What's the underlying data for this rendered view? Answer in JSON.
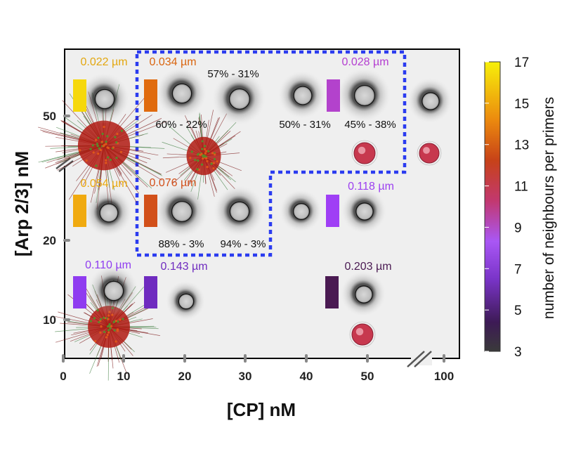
{
  "chart_data": {
    "type": "scatter",
    "xlabel": "[CP] nM",
    "ylabel": "[Arp 2/3] nM",
    "x_ticks": [
      "0",
      "10",
      "20",
      "30",
      "40",
      "50",
      "100"
    ],
    "y_ticks": [
      "50",
      "20",
      "10"
    ],
    "colorbar": {
      "label": "number of neighbours per primers",
      "ticks": [
        "17",
        "15",
        "13",
        "11",
        "9",
        "7",
        "5",
        "3"
      ],
      "range": [
        3,
        17
      ]
    },
    "points": [
      {
        "cp": 0,
        "arp": 50,
        "label": "0.022 µm",
        "color": "#e3a70f"
      },
      {
        "cp": 10,
        "arp": 50,
        "label": "0.034 µm",
        "color": "#d9650f"
      },
      {
        "cp": 15,
        "arp": 50,
        "label": "57% - 31%",
        "color": ""
      },
      {
        "cp": 10,
        "arp": 50,
        "label": "60% - 22%",
        "color": ""
      },
      {
        "cp": 40,
        "arp": 50,
        "label": "50% - 31%",
        "color": ""
      },
      {
        "cp": 50,
        "arp": 50,
        "label": "45% - 38%",
        "color": ""
      },
      {
        "cp": 40,
        "arp": 50,
        "label": "0.028 µm",
        "color": "#b43fd1"
      },
      {
        "cp": 0,
        "arp": 20,
        "label": "0.054 µm",
        "color": "#eaa80c"
      },
      {
        "cp": 10,
        "arp": 20,
        "label": "0.076 µm",
        "color": "#d2501a"
      },
      {
        "cp": 10,
        "arp": 20,
        "label": "88% - 3%",
        "color": ""
      },
      {
        "cp": 20,
        "arp": 20,
        "label": "94% - 3%",
        "color": ""
      },
      {
        "cp": 40,
        "arp": 20,
        "label": "0.118 µm",
        "color": "#9c3ff0"
      },
      {
        "cp": 0,
        "arp": 10,
        "label": "0.110 µm",
        "color": "#8f3cf0"
      },
      {
        "cp": 10,
        "arp": 10,
        "label": "0.143 µm",
        "color": "#6f2bbf"
      },
      {
        "cp": 40,
        "arp": 10,
        "label": "0.203 µm",
        "color": "#4a1a52"
      }
    ],
    "swatches": [
      {
        "color": "#f6d80b"
      },
      {
        "color": "#e06b0e"
      },
      {
        "color": "#b342cc"
      },
      {
        "color": "#f0aa10"
      },
      {
        "color": "#d2501a"
      },
      {
        "color": "#9f3ff5"
      },
      {
        "color": "#8f3cf0"
      },
      {
        "color": "#6f2bbf"
      },
      {
        "color": "#4a1a52"
      }
    ]
  }
}
